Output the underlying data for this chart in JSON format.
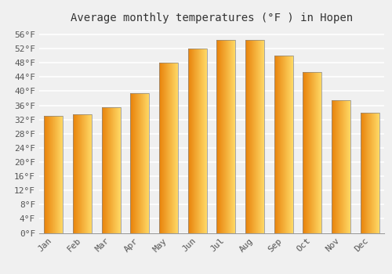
{
  "months": [
    "Jan",
    "Feb",
    "Mar",
    "Apr",
    "May",
    "Jun",
    "Jul",
    "Aug",
    "Sep",
    "Oct",
    "Nov",
    "Dec"
  ],
  "values": [
    33.0,
    33.5,
    35.5,
    39.5,
    48.0,
    52.0,
    54.5,
    54.5,
    50.0,
    45.5,
    37.5,
    34.0
  ],
  "title": "Average monthly temperatures (°F ) in Hopen",
  "ylim": [
    0,
    58
  ],
  "yticks": [
    0,
    4,
    8,
    12,
    16,
    20,
    24,
    28,
    32,
    36,
    40,
    44,
    48,
    52,
    56
  ],
  "ytick_labels": [
    "0°F",
    "4°F",
    "8°F",
    "12°F",
    "16°F",
    "20°F",
    "24°F",
    "28°F",
    "32°F",
    "36°F",
    "40°F",
    "44°F",
    "48°F",
    "52°F",
    "56°F"
  ],
  "background_color": "#F0F0F0",
  "grid_color": "#FFFFFF",
  "title_fontsize": 10,
  "tick_fontsize": 8,
  "bar_width": 0.65,
  "bar_color_left": "#E8820A",
  "bar_color_right": "#FFD966",
  "bar_edge_color": "#888888"
}
